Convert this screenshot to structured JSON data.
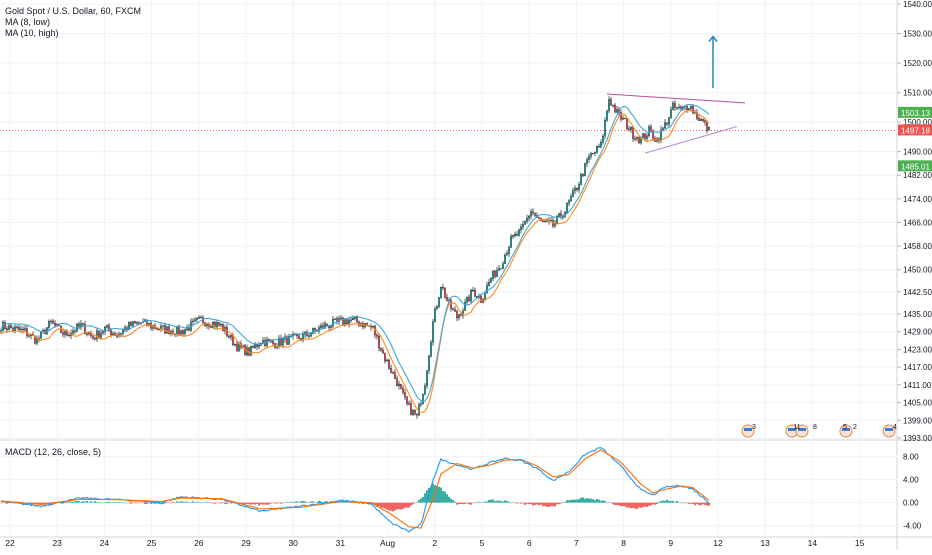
{
  "chart_data": {
    "type": "candlestick",
    "symbol_title": "Gold Spot / U.S. Dollar, 60, FXCM",
    "indicators": [
      "MA (8, low)",
      "MA (10, high)"
    ],
    "macd_title": "MACD (12, 26, close, 5)",
    "price_axis": {
      "ylim": [
        1393.0,
        1540.0
      ],
      "ticks": [
        "1540.00",
        "1530.00",
        "1520.00",
        "1510.00",
        "1500.00",
        "1490.00",
        "1482.00",
        "1474.00",
        "1466.00",
        "1458.00",
        "1450.00",
        "1442.50",
        "1435.00",
        "1429.00",
        "1423.00",
        "1417.00",
        "1411.00",
        "1405.00",
        "1399.00",
        "1393.00"
      ],
      "tick_values": [
        1540,
        1530,
        1520,
        1510,
        1500,
        1490,
        1482,
        1474,
        1466,
        1458,
        1450,
        1442.5,
        1435,
        1429,
        1423,
        1417,
        1411,
        1405,
        1399,
        1393
      ]
    },
    "price_labels": [
      {
        "text": "1503.13",
        "value": 1503.13,
        "color": "#4caf50"
      },
      {
        "text": "1497.18",
        "value": 1497.18,
        "color": "#ef5350"
      },
      {
        "text": "1485.01",
        "value": 1485.01,
        "color": "#4caf50"
      }
    ],
    "current_price": 1497.18,
    "macd_axis": {
      "ylim": [
        -5.8,
        10.2
      ],
      "ticks": [
        "8.00",
        "4.00",
        "0.00",
        "-4.00"
      ],
      "tick_values": [
        8,
        4,
        0,
        -4
      ]
    },
    "x_axis": {
      "labels": [
        "22",
        "23",
        "24",
        "25",
        "26",
        "29",
        "30",
        "31",
        "Aug",
        "2",
        "5",
        "6",
        "7",
        "8",
        "9",
        "12",
        "13",
        "14",
        "15"
      ]
    },
    "price_series_keypoints": [
      [
        0,
        1431
      ],
      [
        12,
        1429
      ],
      [
        18,
        1426
      ],
      [
        25,
        1432
      ],
      [
        32,
        1428
      ],
      [
        40,
        1431
      ],
      [
        46,
        1427
      ],
      [
        52,
        1430
      ],
      [
        58,
        1428
      ],
      [
        64,
        1431
      ],
      [
        70,
        1432
      ],
      [
        80,
        1430
      ],
      [
        90,
        1429
      ],
      [
        100,
        1433
      ],
      [
        110,
        1431
      ],
      [
        118,
        1424
      ],
      [
        124,
        1422
      ],
      [
        130,
        1426
      ],
      [
        136,
        1425
      ],
      [
        142,
        1426
      ],
      [
        150,
        1427
      ],
      [
        156,
        1429
      ],
      [
        162,
        1431
      ],
      [
        168,
        1432
      ],
      [
        174,
        1433
      ],
      [
        180,
        1432
      ],
      [
        186,
        1430
      ],
      [
        192,
        1420
      ],
      [
        198,
        1412
      ],
      [
        203,
        1404
      ],
      [
        208,
        1400
      ],
      [
        212,
        1412
      ],
      [
        216,
        1432
      ],
      [
        220,
        1445
      ],
      [
        224,
        1438
      ],
      [
        228,
        1434
      ],
      [
        232,
        1438
      ],
      [
        236,
        1443
      ],
      [
        240,
        1440
      ],
      [
        245,
        1447
      ],
      [
        250,
        1452
      ],
      [
        255,
        1460
      ],
      [
        260,
        1463
      ],
      [
        265,
        1470
      ],
      [
        270,
        1466
      ],
      [
        276,
        1465
      ],
      [
        282,
        1470
      ],
      [
        288,
        1478
      ],
      [
        294,
        1488
      ],
      [
        300,
        1492
      ],
      [
        304,
        1508
      ],
      [
        308,
        1503
      ],
      [
        312,
        1500
      ],
      [
        316,
        1496
      ],
      [
        320,
        1494
      ],
      [
        324,
        1497
      ],
      [
        328,
        1494
      ],
      [
        332,
        1499
      ],
      [
        336,
        1505
      ],
      [
        340,
        1504
      ],
      [
        344,
        1506
      ],
      [
        348,
        1502
      ],
      [
        351,
        1500
      ],
      [
        354,
        1497
      ]
    ],
    "macd_series_keypoints": [
      [
        0,
        0.2
      ],
      [
        20,
        -0.6
      ],
      [
        40,
        0.8
      ],
      [
        60,
        0.5
      ],
      [
        80,
        0.0
      ],
      [
        90,
        1.0
      ],
      [
        110,
        0.6
      ],
      [
        130,
        -1.5
      ],
      [
        150,
        -0.6
      ],
      [
        170,
        0.4
      ],
      [
        185,
        -0.2
      ],
      [
        195,
        -3.5
      ],
      [
        204,
        -5.0
      ],
      [
        210,
        -3.8
      ],
      [
        216,
        4.0
      ],
      [
        220,
        7.5
      ],
      [
        228,
        6.6
      ],
      [
        236,
        5.8
      ],
      [
        244,
        6.9
      ],
      [
        252,
        7.7
      ],
      [
        260,
        7.3
      ],
      [
        268,
        6.0
      ],
      [
        276,
        3.8
      ],
      [
        284,
        5.4
      ],
      [
        292,
        8.4
      ],
      [
        300,
        9.6
      ],
      [
        310,
        6.3
      ],
      [
        320,
        2.2
      ],
      [
        326,
        1.3
      ],
      [
        332,
        2.7
      ],
      [
        340,
        3.0
      ],
      [
        346,
        2.3
      ],
      [
        354,
        0.0
      ]
    ],
    "signal_series_keypoints": [
      [
        0,
        0.3
      ],
      [
        20,
        -0.3
      ],
      [
        40,
        0.6
      ],
      [
        60,
        0.5
      ],
      [
        80,
        0.2
      ],
      [
        90,
        0.8
      ],
      [
        110,
        0.7
      ],
      [
        130,
        -1.1
      ],
      [
        150,
        -0.8
      ],
      [
        170,
        0.2
      ],
      [
        185,
        0.0
      ],
      [
        195,
        -2.0
      ],
      [
        204,
        -4.2
      ],
      [
        210,
        -4.4
      ],
      [
        216,
        0.6
      ],
      [
        220,
        5.0
      ],
      [
        228,
        6.8
      ],
      [
        236,
        6.0
      ],
      [
        244,
        6.5
      ],
      [
        252,
        7.4
      ],
      [
        260,
        7.5
      ],
      [
        268,
        6.4
      ],
      [
        276,
        4.5
      ],
      [
        284,
        4.9
      ],
      [
        292,
        7.6
      ],
      [
        300,
        9.2
      ],
      [
        310,
        7.0
      ],
      [
        320,
        3.2
      ],
      [
        326,
        1.7
      ],
      [
        332,
        2.3
      ],
      [
        340,
        2.9
      ],
      [
        346,
        2.6
      ],
      [
        354,
        0.4
      ]
    ],
    "trendlines": [
      {
        "name": "triangle-upper",
        "points": [
          [
            1509.5,
            303
          ],
          [
            1506.5,
            372
          ]
        ],
        "color": "#c04ba3"
      },
      {
        "name": "triangle-lower",
        "points": [
          [
            1489.5,
            322
          ],
          [
            1498.5,
            368
          ]
        ],
        "color": "#b48ad8"
      }
    ],
    "arrow": {
      "direction": "up",
      "from": 1511.5,
      "to": 1529.0,
      "color": "#1e88c0"
    },
    "event_badges": [
      "3",
      "11",
      "8",
      "5",
      "2",
      "4"
    ],
    "colors": {
      "up_candle": "#26a69a",
      "down_candle": "#ef5350",
      "wick": "#131722",
      "ma_low": "#ff8a1f",
      "ma_high": "#3fa7d6",
      "current_line": "#ef5350",
      "hist_pos": "#26a69a",
      "hist_neg": "#ef5350"
    }
  }
}
